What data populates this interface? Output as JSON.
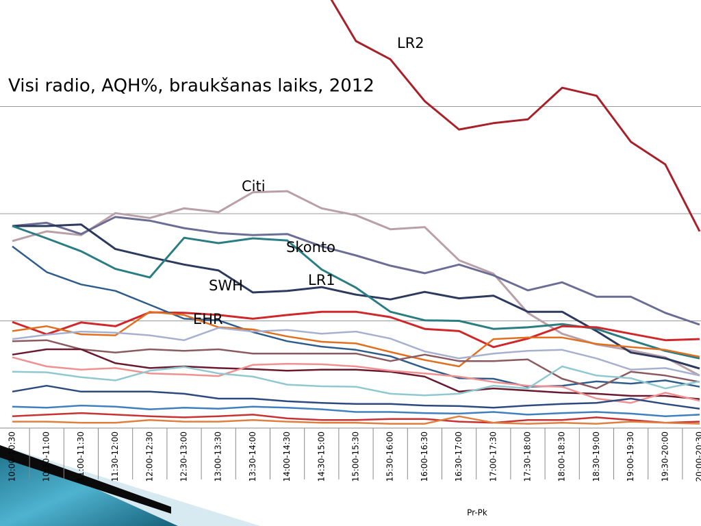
{
  "chart_data": {
    "type": "line",
    "title": "Visi radio, AQH%, braukšanas laiks, 2012",
    "x_label": "Pr-Pk",
    "categories": [
      "10:00-10:30",
      "10:30-11:00",
      "11:00-11:30",
      "11:30-12:00",
      "12:00-12:30",
      "12:30-13:00",
      "13:00-13:30",
      "13:30-14:00",
      "14:00-14:30",
      "14:30-15:00",
      "15:00-15:30",
      "15:30-16:00",
      "16:00-16:30",
      "16:30-17:00",
      "17:00-17:30",
      "17:30-18:00",
      "18:00-18:30",
      "18:30-19:00",
      "19:00-19:30",
      "19:30-20:00",
      "20:00-20:30"
    ],
    "ylim": [
      0,
      8
    ],
    "yticks": [
      2,
      4,
      6
    ],
    "grid": true,
    "series": [
      {
        "name": "LR2",
        "color": "#a8202a",
        "values": [
          null,
          null,
          null,
          null,
          null,
          null,
          null,
          null,
          null,
          8.3,
          7.22,
          6.88,
          6.1,
          5.57,
          5.69,
          5.76,
          6.35,
          6.2,
          5.34,
          4.92,
          3.67
        ]
      },
      {
        "name": "Citi",
        "color": "#b9a0a8",
        "values": [
          3.49,
          3.67,
          3.6,
          4.01,
          3.92,
          4.1,
          4.03,
          4.4,
          4.42,
          4.1,
          3.97,
          3.71,
          3.75,
          3.13,
          2.88,
          2.15,
          1.76,
          1.56,
          1.45,
          1.32,
          0.98
        ]
      },
      {
        "name": "Skonto",
        "color": "#6b6d94",
        "values": [
          3.77,
          3.83,
          3.62,
          3.94,
          3.87,
          3.73,
          3.64,
          3.6,
          3.62,
          3.39,
          3.22,
          3.03,
          2.89,
          3.05,
          2.85,
          2.57,
          2.72,
          2.45,
          2.45,
          2.15,
          1.93
        ]
      },
      {
        "name": "SWH",
        "color": "#2c3a5e",
        "values": [
          3.77,
          3.77,
          3.8,
          3.34,
          3.19,
          3.05,
          2.94,
          2.53,
          2.56,
          2.63,
          2.49,
          2.4,
          2.54,
          2.42,
          2.47,
          2.17,
          2.17,
          1.81,
          1.41,
          1.3,
          1.11
        ]
      },
      {
        "name": "LR1",
        "color": "#2a7d82",
        "values": [
          3.77,
          3.54,
          3.3,
          2.97,
          2.81,
          3.55,
          3.45,
          3.54,
          3.5,
          2.96,
          2.62,
          2.17,
          2.01,
          2.0,
          1.85,
          1.88,
          1.94,
          1.85,
          1.64,
          1.44,
          1.3
        ]
      },
      {
        "name": "EHR",
        "color": "#d0282a",
        "values": [
          1.98,
          1.75,
          1.97,
          1.9,
          2.16,
          2.15,
          2.11,
          2.04,
          2.11,
          2.17,
          2.17,
          2.07,
          1.85,
          1.81,
          1.51,
          1.67,
          1.9,
          1.88,
          1.76,
          1.64,
          1.66
        ]
      },
      {
        "color": "#2e5d8c",
        "values": [
          3.39,
          2.91,
          2.68,
          2.56,
          2.3,
          2.04,
          2.01,
          1.79,
          1.62,
          1.52,
          1.46,
          1.34,
          1.12,
          0.93,
          0.92,
          0.77,
          0.79,
          0.87,
          0.83,
          0.89,
          0.77
        ]
      },
      {
        "color": "#e07020",
        "values": [
          1.81,
          1.9,
          1.75,
          1.73,
          2.17,
          2.11,
          1.88,
          1.84,
          1.71,
          1.61,
          1.58,
          1.42,
          1.27,
          1.15,
          1.66,
          1.69,
          1.69,
          1.57,
          1.51,
          1.46,
          1.33
        ]
      },
      {
        "color": "#a8b0d0",
        "values": [
          1.66,
          1.74,
          1.8,
          1.78,
          1.73,
          1.64,
          1.87,
          1.8,
          1.83,
          1.76,
          1.8,
          1.67,
          1.43,
          1.3,
          1.39,
          1.44,
          1.46,
          1.3,
          1.09,
          1.12,
          0.98
        ]
      },
      {
        "color": "#8a5a60",
        "values": [
          1.62,
          1.64,
          1.47,
          1.41,
          1.47,
          1.44,
          1.47,
          1.39,
          1.39,
          1.39,
          1.39,
          1.25,
          1.37,
          1.25,
          1.25,
          1.28,
          0.92,
          0.74,
          1.05,
          0.98,
          0.86
        ]
      },
      {
        "color": "#6a1a30",
        "values": [
          1.37,
          1.47,
          1.47,
          1.21,
          1.12,
          1.15,
          1.12,
          1.1,
          1.07,
          1.09,
          1.09,
          1.05,
          0.96,
          0.68,
          0.74,
          0.7,
          0.66,
          0.64,
          0.6,
          0.6,
          0.54
        ]
      },
      {
        "color": "#f09090",
        "values": [
          1.32,
          1.15,
          1.09,
          1.12,
          1.02,
          1.0,
          0.97,
          1.18,
          1.2,
          1.19,
          1.15,
          1.07,
          1.02,
          0.96,
          0.86,
          0.79,
          0.77,
          0.55,
          0.47,
          0.66,
          0.51
        ]
      },
      {
        "color": "#90c8d0",
        "values": [
          1.05,
          1.04,
          0.95,
          0.89,
          1.07,
          1.14,
          1.02,
          0.96,
          0.81,
          0.78,
          0.77,
          0.64,
          0.61,
          0.64,
          0.79,
          0.74,
          1.15,
          0.98,
          0.93,
          0.74,
          0.87
        ]
      },
      {
        "color": "#2c4a80",
        "values": [
          0.68,
          0.79,
          0.68,
          0.68,
          0.68,
          0.64,
          0.55,
          0.55,
          0.5,
          0.47,
          0.45,
          0.45,
          0.42,
          0.41,
          0.38,
          0.42,
          0.45,
          0.47,
          0.55,
          0.45,
          0.36
        ]
      },
      {
        "color": "#4080c0",
        "values": [
          0.4,
          0.38,
          0.42,
          0.4,
          0.35,
          0.38,
          0.36,
          0.4,
          0.38,
          0.35,
          0.3,
          0.3,
          0.28,
          0.27,
          0.3,
          0.25,
          0.28,
          0.3,
          0.27,
          0.22,
          0.25
        ]
      },
      {
        "color": "#c83232",
        "values": [
          0.22,
          0.25,
          0.28,
          0.25,
          0.22,
          0.2,
          0.22,
          0.25,
          0.18,
          0.15,
          0.15,
          0.17,
          0.17,
          0.12,
          0.1,
          0.15,
          0.15,
          0.2,
          0.15,
          0.1,
          0.12
        ]
      },
      {
        "color": "#e08040",
        "values": [
          0.12,
          0.12,
          0.1,
          0.1,
          0.15,
          0.12,
          0.12,
          0.15,
          0.12,
          0.1,
          0.1,
          0.08,
          0.08,
          0.22,
          0.1,
          0.08,
          0.1,
          0.08,
          0.12,
          0.1,
          0.08
        ]
      }
    ]
  }
}
